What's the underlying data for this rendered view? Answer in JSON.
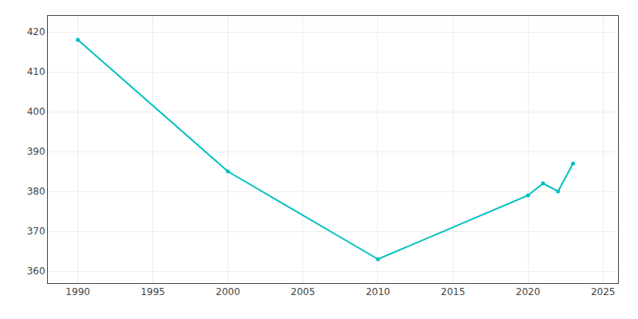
{
  "chart_data": {
    "type": "line",
    "x": [
      1990,
      2000,
      2010,
      2020,
      2021,
      2022,
      2023
    ],
    "values": [
      418,
      385,
      363,
      379,
      382,
      380,
      387
    ],
    "color": "#00C0C0",
    "marker": "circle",
    "xlim": [
      1988,
      2026
    ],
    "ylim": [
      357,
      424
    ],
    "xticks": [
      1990,
      1995,
      2000,
      2005,
      2010,
      2015,
      2020,
      2025
    ],
    "yticks": [
      360,
      370,
      380,
      390,
      400,
      410,
      420
    ],
    "grid": true
  }
}
